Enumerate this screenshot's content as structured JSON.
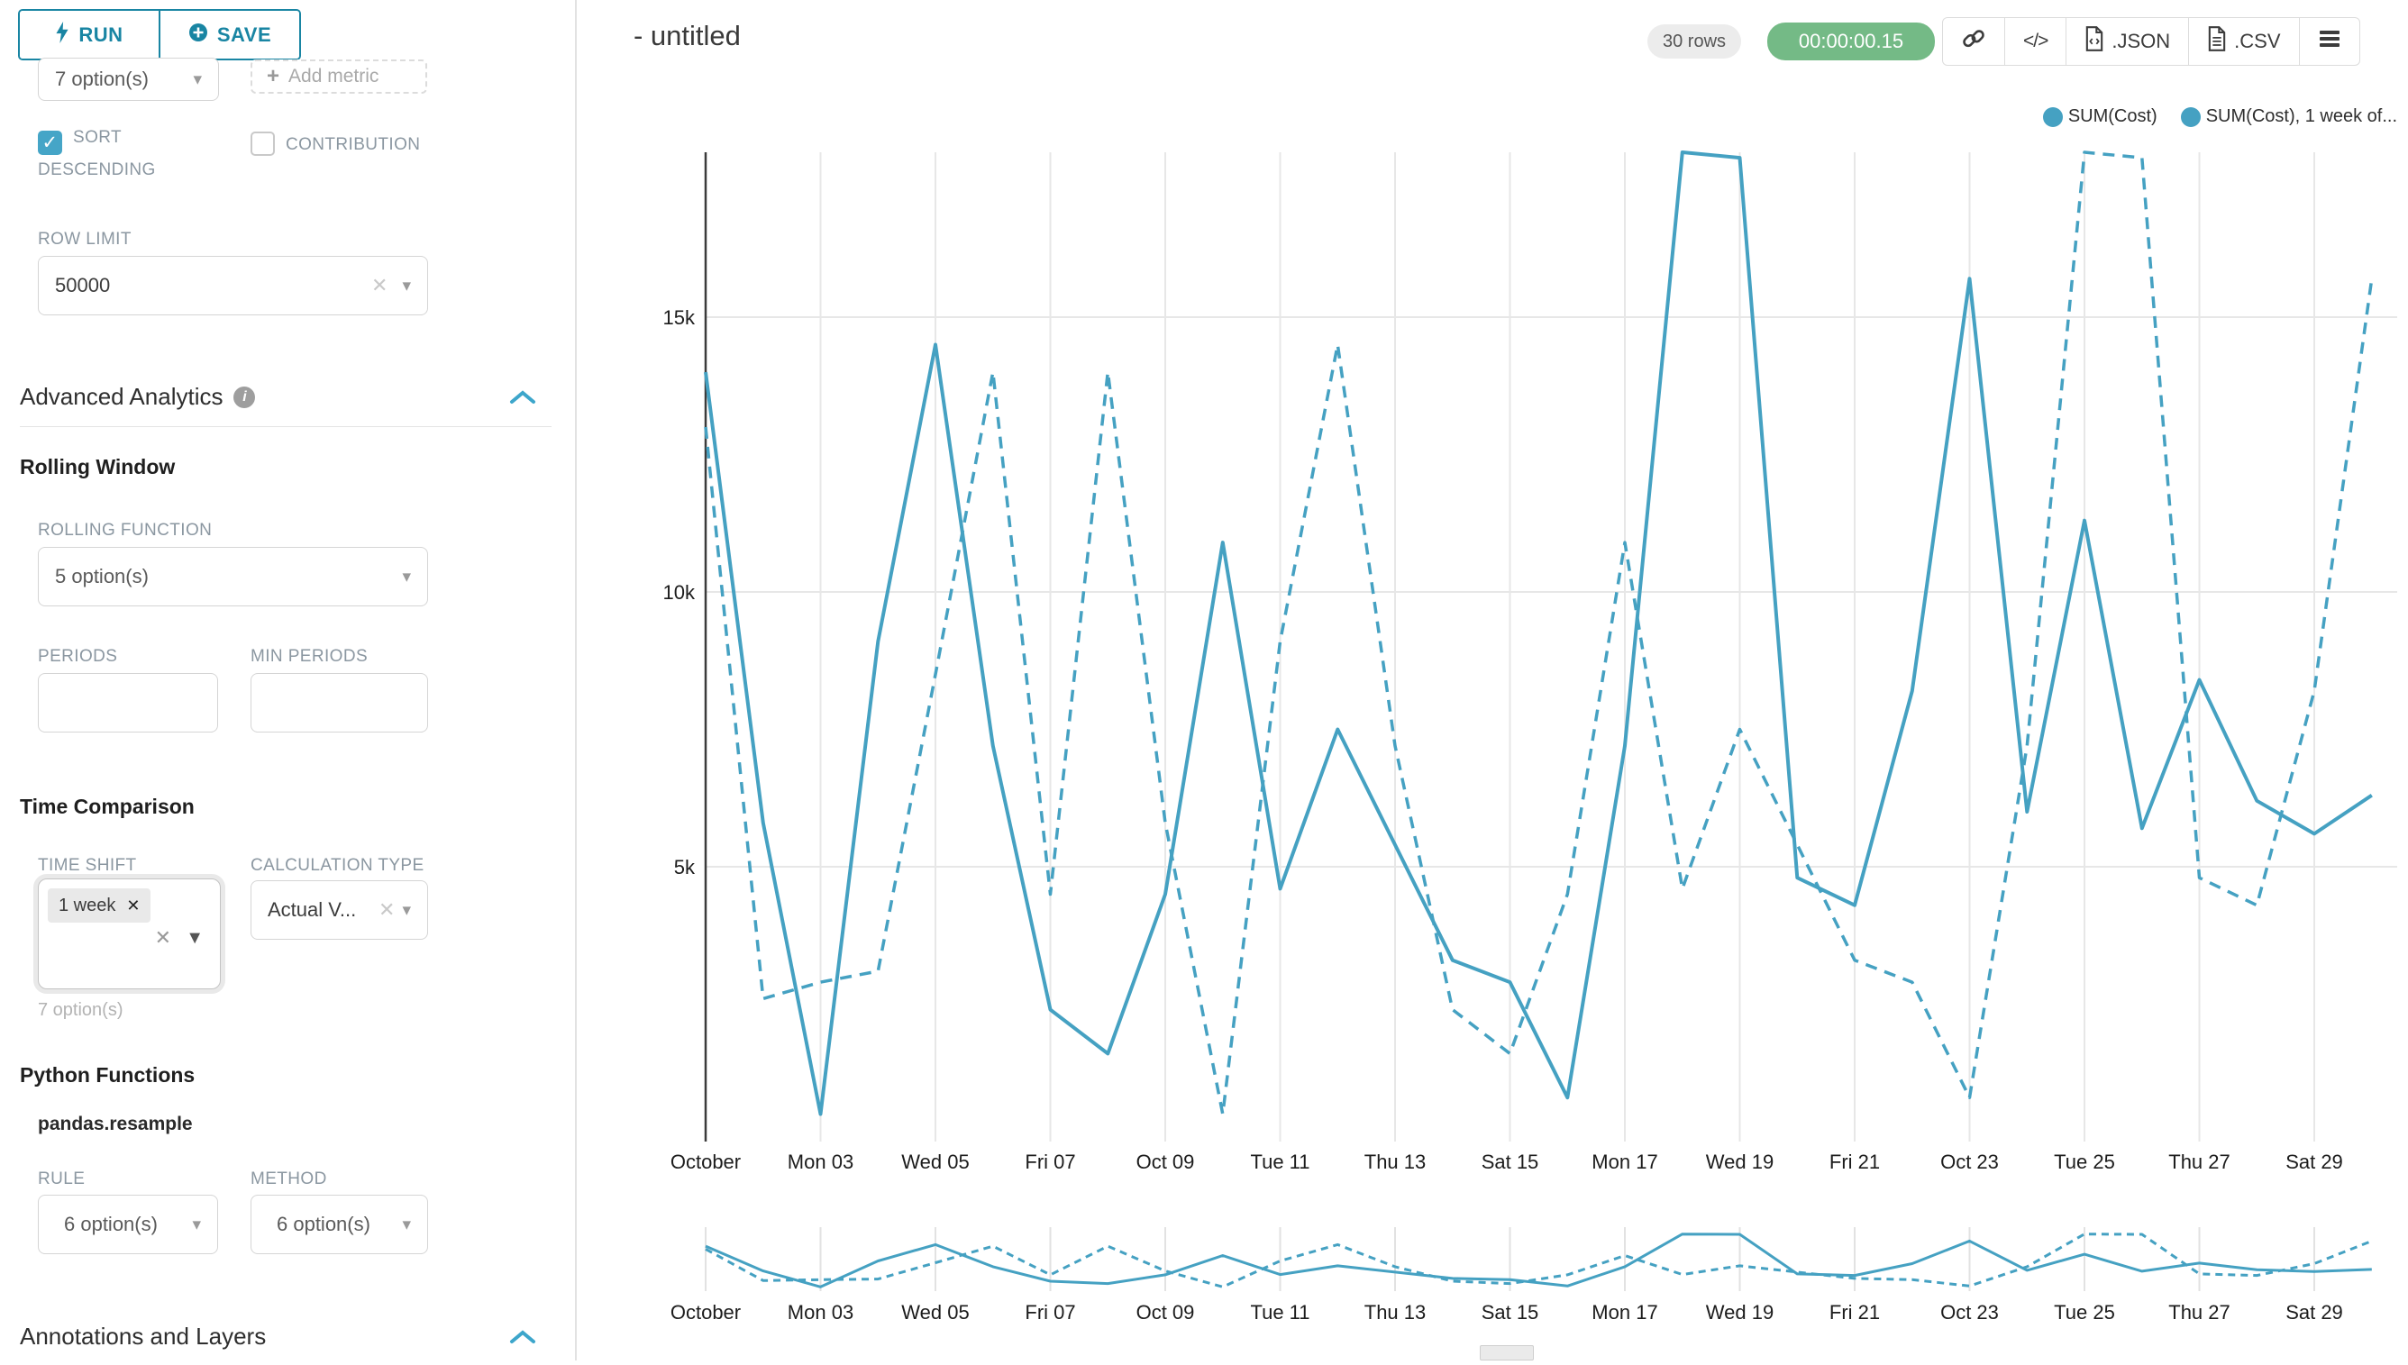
{
  "sidebar": {
    "run_label": "RUN",
    "save_label": "SAVE",
    "series_select_value": "7 option(s)",
    "add_metric_label": "Add metric",
    "sort_descending_label": "SORT DESCENDING",
    "contribution_label": "CONTRIBUTION",
    "row_limit_label": "ROW LIMIT",
    "row_limit_value": "50000",
    "advanced_analytics_title": "Advanced Analytics",
    "rolling_window_title": "Rolling Window",
    "rolling_function_label": "ROLLING FUNCTION",
    "rolling_function_value": "5 option(s)",
    "periods_label": "PERIODS",
    "min_periods_label": "MIN PERIODS",
    "time_comparison_title": "Time Comparison",
    "time_shift_label": "TIME SHIFT",
    "time_shift_tag": "1 week",
    "time_shift_hint": "7 option(s)",
    "calculation_type_label": "CALCULATION TYPE",
    "calculation_type_value": "Actual V...",
    "python_functions_title": "Python Functions",
    "pandas_resample_label": "pandas.resample",
    "rule_label": "RULE",
    "rule_value": "6 option(s)",
    "method_label": "METHOD",
    "method_value": "6 option(s)",
    "annotations_title": "Annotations and Layers"
  },
  "header": {
    "title": "- untitled",
    "rows_badge": "30 rows",
    "timer_badge": "00:00:00.15",
    "export_json_label": ".JSON",
    "export_csv_label": ".CSV",
    "code_glyph": "</>"
  },
  "chart_data": {
    "type": "line",
    "x_tick_labels": [
      "October",
      "Mon 03",
      "Wed 05",
      "Fri 07",
      "Oct 09",
      "Tue 11",
      "Thu 13",
      "Sat 15",
      "Mon 17",
      "Wed 19",
      "Fri 21",
      "Oct 23",
      "Tue 25",
      "Thu 27",
      "Sat 29"
    ],
    "points_per_series": 30,
    "days_between_ticks": 2,
    "series": [
      {
        "name": "SUM(Cost)",
        "legend_label": "SUM(Cost)",
        "style": "solid",
        "values": [
          14000,
          5800,
          500,
          9100,
          14500,
          7200,
          2400,
          1600,
          4500,
          10900,
          4600,
          7500,
          5400,
          3300,
          2900,
          800,
          7200,
          18000,
          17900,
          4800,
          4300,
          8200,
          15700,
          6000,
          11300,
          5700,
          8400,
          6200,
          5600,
          6300
        ]
      },
      {
        "name": "SUM(Cost), 1 week offset",
        "legend_label": "SUM(Cost), 1 week of...",
        "style": "dashed",
        "values": [
          13000,
          2600,
          2900,
          3100,
          8500,
          14000,
          4500,
          14000,
          5800,
          500,
          9100,
          14500,
          7200,
          2400,
          1600,
          4500,
          10900,
          4600,
          7500,
          5400,
          3300,
          2900,
          800,
          7200,
          18000,
          17900,
          4800,
          4300,
          8200,
          15700
        ]
      }
    ],
    "yticks": [
      {
        "value": 5000,
        "label": "5k"
      },
      {
        "value": 10000,
        "label": "10k"
      },
      {
        "value": 15000,
        "label": "15k"
      }
    ],
    "ylim": [
      0,
      18400
    ],
    "grid": true,
    "legend_position": "top-right",
    "line_color": "#45a1c2"
  }
}
